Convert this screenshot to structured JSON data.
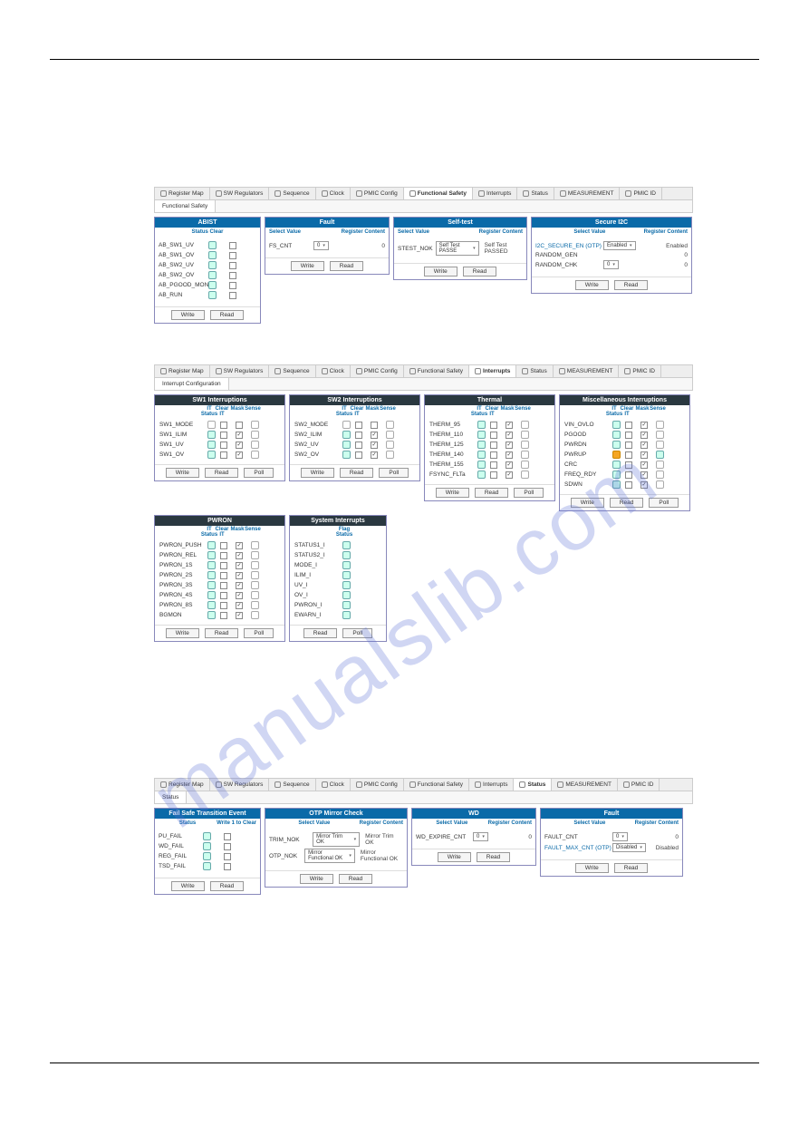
{
  "tabs": [
    "Register Map",
    "SW Regulators",
    "Sequence",
    "Clock",
    "PMIC Config",
    "Functional Safety",
    "Interrupts",
    "Status",
    "MEASUREMENT",
    "PMIC ID"
  ],
  "fig1": {
    "active": "Functional Safety",
    "subtab": "Functional Safety",
    "abist": {
      "title": "ABIST",
      "statusClear": "Status Clear",
      "rows": [
        "AB_SW1_UV",
        "AB_SW1_OV",
        "AB_SW2_UV",
        "AB_SW2_OV",
        "AB_PGOOD_MON",
        "AB_RUN"
      ],
      "write": "Write",
      "read": "Read"
    },
    "fault": {
      "title": "Fault",
      "sv": "Select Value",
      "rc": "Register Content",
      "fs_cnt": "FS_CNT",
      "val": "0",
      "reg": "0",
      "write": "Write",
      "read": "Read"
    },
    "selftest": {
      "title": "Self-test",
      "sv": "Select Value",
      "rc": "Register Content",
      "stest": "STEST_NOK",
      "sel": "Self Test PASSE",
      "reg": "Self Test PASSED",
      "write": "Write",
      "read": "Read"
    },
    "secure": {
      "title": "Secure I2C",
      "sv": "Select Value",
      "rc": "Register Content",
      "r1": "I2C_SECURE_EN (OTP)",
      "r1v": "Enabled",
      "r1r": "Enabled",
      "r2": "RANDOM_GEN",
      "r2r": "0",
      "r3": "RANDOM_CHK",
      "r3v": "0",
      "r3r": "0",
      "write": "Write",
      "read": "Read"
    }
  },
  "fig2": {
    "active": "Interrupts",
    "subtab": "Interrupt Configuration",
    "heads": {
      "it": "IT",
      "status": "Status",
      "clear": "Clear",
      "mask": "Mask",
      "sense": "Sense",
      "flag": "Flag"
    },
    "btns": {
      "write": "Write",
      "read": "Read",
      "poll": "Poll"
    },
    "sw1": {
      "title": "SW1 Interruptions",
      "rows": [
        [
          "SW1_MODE",
          0,
          0,
          0,
          0,
          0
        ],
        [
          "SW1_ILIM",
          1,
          0,
          1,
          0,
          1
        ],
        [
          "SW1_UV",
          1,
          0,
          1,
          0,
          1
        ],
        [
          "SW1_OV",
          1,
          0,
          1,
          0,
          1
        ]
      ]
    },
    "sw2": {
      "title": "SW2 Interruptions",
      "rows": [
        [
          "SW2_MODE",
          0,
          0,
          0,
          0,
          0
        ],
        [
          "SW2_ILIM",
          1,
          0,
          1,
          0,
          1
        ],
        [
          "SW2_UV",
          1,
          0,
          1,
          0,
          1
        ],
        [
          "SW2_OV",
          1,
          0,
          1,
          0,
          1
        ]
      ]
    },
    "thermal": {
      "title": "Thermal",
      "rows": [
        [
          "THERM_95",
          1,
          0,
          1,
          0,
          1
        ],
        [
          "THERM_110",
          1,
          0,
          1,
          0,
          1
        ],
        [
          "THERM_125",
          1,
          0,
          1,
          0,
          1
        ],
        [
          "THERM_140",
          1,
          0,
          1,
          0,
          1
        ],
        [
          "THERM_155",
          1,
          0,
          1,
          0,
          1
        ],
        [
          "FSYNC_FLTa",
          1,
          0,
          1,
          0,
          1
        ]
      ]
    },
    "misc": {
      "title": "Miscellaneous Interruptions",
      "rows": [
        [
          "VIN_OVLO",
          1,
          0,
          1,
          0,
          1
        ],
        [
          "PGOOD",
          1,
          0,
          1,
          0,
          1
        ],
        [
          "PWRDN",
          1,
          0,
          1,
          0,
          0
        ],
        [
          "PWRUP",
          2,
          0,
          1,
          1,
          0
        ],
        [
          "CRC",
          1,
          0,
          1,
          0,
          0
        ],
        [
          "FREQ_RDY",
          1,
          0,
          1,
          0,
          0
        ],
        [
          "SDWN",
          1,
          0,
          1,
          0,
          0
        ]
      ]
    },
    "pwron": {
      "title": "PWRON",
      "rows": [
        [
          "PWRON_PUSH",
          1,
          0,
          1,
          0,
          2
        ],
        [
          "PWRON_REL",
          1,
          0,
          1,
          0,
          0
        ],
        [
          "PWRON_1S",
          1,
          0,
          1,
          0,
          0
        ],
        [
          "PWRON_2S",
          1,
          0,
          1,
          0,
          0
        ],
        [
          "PWRON_3S",
          1,
          0,
          1,
          0,
          0
        ],
        [
          "PWRON_4S",
          1,
          0,
          1,
          0,
          0
        ],
        [
          "PWRON_8S",
          1,
          0,
          1,
          0,
          0
        ],
        [
          "BGMON",
          1,
          0,
          1,
          0,
          1
        ]
      ]
    },
    "sys": {
      "title": "System Interrupts",
      "rows": [
        "STATUS1_I",
        "STATUS2_I",
        "MODE_I",
        "ILIM_I",
        "UV_I",
        "OV_I",
        "PWRON_I",
        "EWARN_I"
      ]
    }
  },
  "fig3": {
    "active": "Status",
    "subtab": "Status",
    "failsafe": {
      "title": "Fail Safe Transition Event",
      "status": "Status",
      "w1c": "Write 1 to Clear",
      "rows": [
        "PU_FAIL",
        "WD_FAIL",
        "REG_FAIL",
        "TSD_FAIL"
      ],
      "write": "Write",
      "read": "Read"
    },
    "otp": {
      "title": "OTP Mirror Check",
      "sv": "Select Value",
      "rc": "Register Content",
      "r1": "TRIM_NOK",
      "r1v": "Mirror Trim OK",
      "r1r": "Mirror Trim OK",
      "r2": "OTP_NOK",
      "r2v": "Mirror Functional OK",
      "r2r": "Mirror Functional OK",
      "write": "Write",
      "read": "Read"
    },
    "wd": {
      "title": "WD",
      "sv": "Select Value",
      "rc": "Register Content",
      "r1": "WD_EXPIRE_CNT",
      "r1v": "0",
      "r1r": "0",
      "write": "Write",
      "read": "Read"
    },
    "fault": {
      "title": "Fault",
      "sv": "Select Value",
      "rc": "Register Content",
      "r1": "FAULT_CNT",
      "r1v": "0",
      "r1r": "0",
      "r2": "FAULT_MAX_CNT (OTP)",
      "r2v": "Disabled",
      "r2r": "Disabled",
      "write": "Write",
      "read": "Read"
    }
  },
  "watermark": "manualslib.com"
}
